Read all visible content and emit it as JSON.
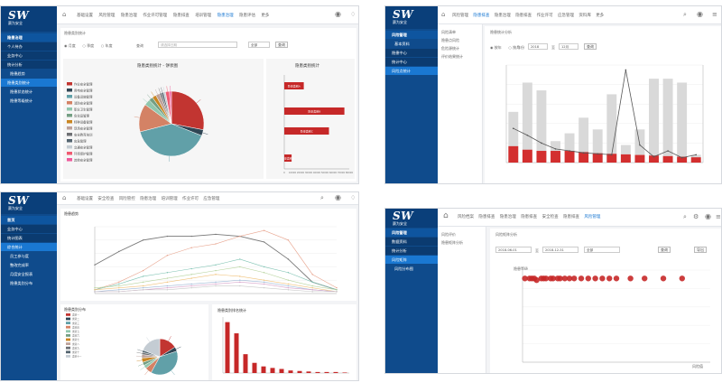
{
  "brand": {
    "logo_text": "SW",
    "logo_subtext": "赛为安全"
  },
  "p1": {
    "sidebar": [
      {
        "label": "隐患治理",
        "style": "head"
      },
      {
        "label": "个人待办",
        "style": "dark"
      },
      {
        "label": "业务中心",
        "style": "dark"
      },
      {
        "label": "统计分析",
        "style": "dark"
      },
      {
        "label": "隐患趋势",
        "style": "sub"
      },
      {
        "label": "隐患类别统计",
        "style": "active"
      },
      {
        "label": "隐患状态统计",
        "style": "sub"
      },
      {
        "label": "隐患等级统计",
        "style": "sub"
      }
    ],
    "nav": [
      "基础设置",
      "风险管理",
      "隐患治理",
      "作业许可管理",
      "隐患排查",
      "培训管理",
      "隐患治理",
      "隐患评估",
      "更多"
    ],
    "nav_active": 6,
    "breadcrumb": "隐患类别统计",
    "filters": [
      "月度",
      "季度",
      "年度"
    ],
    "query_label": "查询",
    "date_placeholder": "请选择日期",
    "select_value": "全部",
    "search_button": "查询",
    "pie_title": "隐患类别统计 - 饼状图",
    "bar_title": "隐患类别统计",
    "legend": [
      {
        "label": "作业安全管理",
        "color": "#c23531"
      },
      {
        "label": "用电安全管理",
        "color": "#2f4554"
      },
      {
        "label": "设备设施管理",
        "color": "#61a0a8"
      },
      {
        "label": "消防安全管理",
        "color": "#d48265"
      },
      {
        "label": "职业卫生管理",
        "color": "#91c7ae"
      },
      {
        "label": "危化品管理",
        "color": "#749f83"
      },
      {
        "label": "特种设备管理",
        "color": "#ca8622"
      },
      {
        "label": "现场安全管理",
        "color": "#bda29a"
      },
      {
        "label": "安全教育培训",
        "color": "#6e7074"
      },
      {
        "label": "应急管理",
        "color": "#546570"
      },
      {
        "label": "交通安全管理",
        "color": "#c4ccd3"
      },
      {
        "label": "环境保护管理",
        "color": "#f05b72"
      },
      {
        "label": "其他安全管理",
        "color": "#ef5b9c"
      }
    ],
    "bar_labels": [
      "隐患类别A",
      "隐患类别B",
      "隐患类别C",
      "隐患类别D"
    ],
    "bar_ticks": [
      "0",
      "10000",
      "20000",
      "30000",
      "40000",
      "50000",
      "60000",
      "70000",
      "80000"
    ]
  },
  "p2": {
    "sidebar": [
      {
        "label": "风险管理",
        "style": "head"
      },
      {
        "label": "基本资料",
        "style": "sub"
      },
      {
        "label": "隐患中心",
        "style": "dark"
      },
      {
        "label": "统计中心",
        "style": "dark"
      },
      {
        "label": "风险点统计",
        "style": "active"
      }
    ],
    "nav": [
      "风险管理",
      "隐患排查",
      "隐患治理",
      "隐患排查",
      "作业许可",
      "应急管理",
      "资料库",
      "更多"
    ],
    "nav_active": 1,
    "left_menu": [
      "风险清单",
      "隐患点风险",
      "危险源统计",
      "评价结果统计"
    ],
    "breadcrumb": "隐患统计分析",
    "filters": [
      "按年",
      "按月"
    ],
    "year_label": "年份",
    "year_value": "2018",
    "to_label": "至",
    "month_value": "12月",
    "search_button": "查询"
  },
  "p3": {
    "sidebar": [
      {
        "label": "首页",
        "style": "head"
      },
      {
        "label": "业务中心",
        "style": "dark"
      },
      {
        "label": "统计图表",
        "style": "dark"
      },
      {
        "label": "综合统计",
        "style": "active"
      },
      {
        "label": "员工参与度",
        "style": "sub"
      },
      {
        "label": "整改完成率",
        "style": "sub"
      },
      {
        "label": "月度安全报表",
        "style": "sub"
      },
      {
        "label": "隐患类别分布",
        "style": "sub"
      }
    ],
    "nav": [
      "基础设置",
      "安全检查",
      "风险管控",
      "隐患治理",
      "培训管理",
      "作业许可",
      "应急管理"
    ],
    "nav_active": -1,
    "line_title": "隐患趋势",
    "pie_title": "隐患类别分布",
    "bar_title": "隐患类别排名统计",
    "legend": [
      {
        "label": "类别一",
        "color": "#c23531"
      },
      {
        "label": "类别二",
        "color": "#2f4554"
      },
      {
        "label": "类别三",
        "color": "#61a0a8"
      },
      {
        "label": "类别四",
        "color": "#d48265"
      },
      {
        "label": "类别五",
        "color": "#91c7ae"
      },
      {
        "label": "类别六",
        "color": "#749f83"
      },
      {
        "label": "类别七",
        "color": "#ca8622"
      },
      {
        "label": "类别八",
        "color": "#bda29a"
      },
      {
        "label": "类别九",
        "color": "#6e7074"
      },
      {
        "label": "类别十",
        "color": "#546570"
      },
      {
        "label": "类别十一",
        "color": "#c4ccd3"
      }
    ]
  },
  "p4": {
    "sidebar": [
      {
        "label": "风险管理",
        "style": "head"
      },
      {
        "label": "数据资料",
        "style": "dark"
      },
      {
        "label": "统计分析",
        "style": "dark"
      },
      {
        "label": "风险矩阵",
        "style": "active"
      },
      {
        "label": "风险分布图",
        "style": "sub"
      }
    ],
    "nav": [
      "风险档案",
      "隐患排查",
      "隐患治理",
      "隐患排查",
      "安全检查",
      "隐患排查",
      "风险管理"
    ],
    "nav_active": 6,
    "left_menu": [
      "风险评价",
      "隐患矩阵分析"
    ],
    "breadcrumb": "风险矩阵分析",
    "date_from": "2018-06-01",
    "to_label": "至",
    "date_to": "2018-12-31",
    "select_value": "全部",
    "search_button": "查询",
    "export_button": "导出",
    "y_axis_label": "隐患等级",
    "x_axis_label": "风险值"
  },
  "chart_data": [
    {
      "type": "pie",
      "title": "隐患类别统计 - 饼状图",
      "categories": [
        "作业安全管理",
        "用电安全管理",
        "设备设施管理",
        "消防安全管理",
        "职业卫生管理",
        "危化品管理",
        "特种设备管理",
        "现场安全管理",
        "安全教育培训",
        "应急管理",
        "交通安全管理",
        "环境保护管理",
        "其他安全管理"
      ],
      "values": [
        28,
        3,
        40,
        14,
        3,
        2,
        2,
        2,
        1,
        1,
        1,
        2,
        1
      ]
    },
    {
      "type": "bar",
      "title": "隐患类别统计",
      "orientation": "horizontal",
      "categories": [
        "隐患类别A",
        "隐患类别B",
        "隐患类别C",
        "隐患类别D"
      ],
      "values": [
        24000,
        74000,
        55000,
        9000
      ],
      "xlim": [
        0,
        80000
      ]
    },
    {
      "type": "bar",
      "subtype": "bar+line",
      "series": [
        {
          "kind": "bar",
          "values": [
            2600,
            4100,
            3700,
            1100,
            1500,
            2300,
            1700,
            3500,
            900,
            1700,
            4300,
            4300,
            4100,
            400
          ]
        },
        {
          "kind": "bar",
          "values": [
            280,
            220,
            200,
            200,
            200,
            180,
            160,
            150,
            140,
            130,
            120,
            110,
            100,
            90
          ]
        },
        {
          "kind": "line",
          "values": [
            35,
            28,
            20,
            14,
            12,
            10,
            9,
            8,
            95,
            18,
            6,
            12,
            5,
            8
          ]
        }
      ],
      "ylim": [
        0,
        5000
      ]
    },
    {
      "type": "line",
      "title": "隐患趋势",
      "x": [
        1,
        2,
        3,
        4,
        5,
        6,
        7,
        8,
        9,
        10,
        11
      ],
      "series": [
        {
          "values": [
            15,
            22,
            28,
            30,
            30,
            31,
            30,
            27,
            18,
            6,
            2
          ]
        },
        {
          "values": [
            2,
            6,
            12,
            20,
            24,
            26,
            30,
            33,
            28,
            10,
            3
          ]
        },
        {
          "values": [
            2,
            5,
            9,
            11,
            13,
            15,
            18,
            14,
            11,
            6,
            2
          ]
        },
        {
          "values": [
            3,
            4,
            6,
            8,
            10,
            12,
            14,
            11,
            7,
            4,
            2
          ]
        },
        {
          "values": [
            2,
            3,
            4,
            6,
            8,
            10,
            9,
            7,
            5,
            3,
            1
          ]
        },
        {
          "values": [
            1,
            2,
            3,
            4,
            5,
            6,
            7,
            6,
            4,
            2,
            1
          ]
        },
        {
          "values": [
            1,
            1,
            2,
            3,
            4,
            5,
            6,
            5,
            3,
            2,
            1
          ]
        },
        {
          "values": [
            1,
            1,
            2,
            2,
            3,
            4,
            4,
            3,
            2,
            1,
            1
          ]
        }
      ],
      "ylim": [
        0,
        35
      ]
    },
    {
      "type": "pie",
      "title": "隐患类别分布",
      "values": [
        16,
        4,
        38,
        6,
        3,
        3,
        4,
        3,
        2,
        2,
        19
      ]
    },
    {
      "type": "bar",
      "title": "隐患类别排名统计",
      "values": [
        100,
        78,
        37,
        20,
        13,
        10,
        8,
        5,
        4,
        3,
        2,
        2,
        2,
        1
      ],
      "ylim": [
        0,
        110
      ]
    },
    {
      "type": "scatter",
      "x": [
        1,
        3,
        4,
        5,
        6,
        8,
        9,
        10,
        12,
        13,
        15,
        16,
        18,
        20,
        22,
        25,
        28,
        31,
        34,
        37,
        40,
        46,
        52,
        60,
        68
      ],
      "y": [
        5,
        5,
        5,
        5,
        4.9,
        5,
        5,
        5,
        5,
        5,
        5,
        5,
        5,
        5,
        5,
        5,
        5,
        5,
        5,
        5,
        5,
        5,
        5,
        5,
        5
      ],
      "xlim": [
        0,
        80
      ],
      "ylim": [
        0,
        5.5
      ]
    }
  ]
}
